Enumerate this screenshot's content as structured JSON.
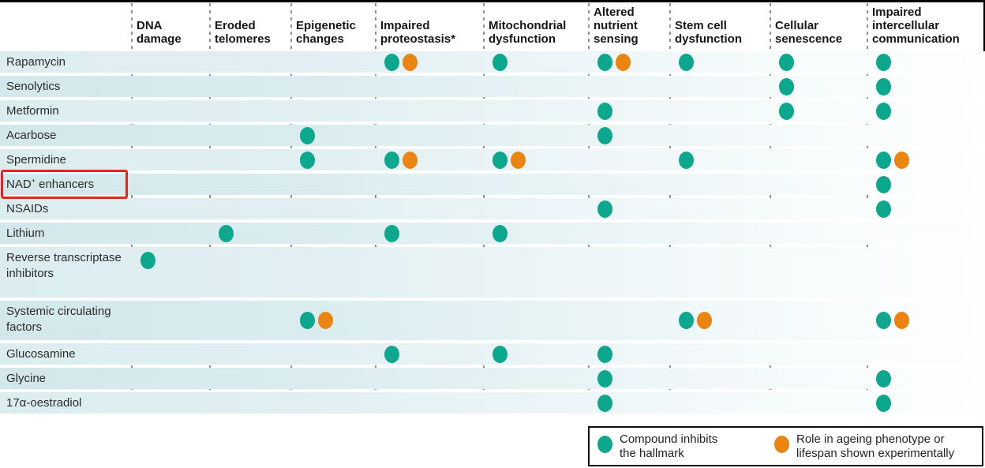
{
  "colors": {
    "teal": "#0ca78c",
    "orange": "#ea8512",
    "highlight_red": "#e52619",
    "row_band": "#dcedf0",
    "separator_gray": "#8b9398"
  },
  "columns": [
    {
      "label": "DNA damage"
    },
    {
      "label": "Eroded telomeres"
    },
    {
      "label": "Epigenetic changes"
    },
    {
      "label": "Impaired proteostasis*"
    },
    {
      "label": "Mitochondrial dysfunction"
    },
    {
      "label": "Altered nutrient sensing"
    },
    {
      "label": "Stem cell dysfunction"
    },
    {
      "label": "Cellular senescence"
    },
    {
      "label": "Impaired intercellular communication"
    }
  ],
  "rows": [
    {
      "label": "Rapamycin",
      "cells": [
        "",
        "",
        "",
        "TO",
        "T",
        "TO",
        "T",
        "T",
        "T"
      ]
    },
    {
      "label": "Senolytics",
      "cells": [
        "",
        "",
        "",
        "",
        "",
        "",
        "",
        "T",
        "T"
      ]
    },
    {
      "label": "Metformin",
      "cells": [
        "",
        "",
        "",
        "",
        "",
        "T",
        "",
        "T",
        "T"
      ]
    },
    {
      "label": "Acarbose",
      "cells": [
        "",
        "",
        "T",
        "",
        "",
        "T",
        "",
        "",
        ""
      ]
    },
    {
      "label": "Spermidine",
      "cells": [
        "",
        "",
        "T",
        "TO",
        "TO",
        "",
        "T",
        "",
        "TO"
      ]
    },
    {
      "label": "NAD+ enhancers",
      "sup_split": [
        "NAD",
        "+",
        " enhancers"
      ],
      "highlighted": true,
      "cells": [
        "",
        "",
        "",
        "",
        "",
        "",
        "",
        "",
        "T"
      ]
    },
    {
      "label": "NSAIDs",
      "cells": [
        "",
        "",
        "",
        "",
        "",
        "T",
        "",
        "",
        "T"
      ]
    },
    {
      "label": "Lithium",
      "cells": [
        "",
        "T",
        "",
        "T",
        "T",
        "",
        "",
        "",
        ""
      ]
    },
    {
      "label": "Reverse transcriptase inhibitors",
      "cells": [
        "T",
        "",
        "",
        "",
        "",
        "",
        "",
        "",
        ""
      ]
    },
    {
      "label": "Systemic circulating factors",
      "cells": [
        "",
        "",
        "TO",
        "",
        "",
        "",
        "TO",
        "",
        "TO"
      ]
    },
    {
      "label": "Glucosamine",
      "cells": [
        "",
        "",
        "",
        "T",
        "T",
        "T",
        "",
        "",
        ""
      ]
    },
    {
      "label": "Glycine",
      "cells": [
        "",
        "",
        "",
        "",
        "",
        "T",
        "",
        "",
        "T"
      ]
    },
    {
      "label": "17α-oestradiol",
      "cells": [
        "",
        "",
        "",
        "",
        "",
        "T",
        "",
        "",
        "T"
      ]
    }
  ],
  "legend": {
    "items": [
      {
        "marker": "teal",
        "lines": [
          "Compound inhibits",
          "the hallmark"
        ]
      },
      {
        "marker": "orange",
        "lines": [
          "Role in ageing phenotype or",
          "lifespan shown experimentally"
        ]
      }
    ]
  },
  "chart_data": {
    "type": "heatmap",
    "title": "Compounds versus hallmarks of ageing they inhibit",
    "columns": [
      "DNA damage",
      "Eroded telomeres",
      "Epigenetic changes",
      "Impaired proteostasis*",
      "Mitochondrial dysfunction",
      "Altered nutrient sensing",
      "Stem cell dysfunction",
      "Cellular senescence",
      "Impaired intercellular communication"
    ],
    "rows": [
      "Rapamycin",
      "Senolytics",
      "Metformin",
      "Acarbose",
      "Spermidine",
      "NAD+ enhancers",
      "NSAIDs",
      "Lithium",
      "Reverse transcriptase inhibitors",
      "Systemic circulating factors",
      "Glucosamine",
      "Glycine",
      "17α-oestradiol"
    ],
    "cell_codes": {
      "T": "teal dot: compound inhibits the hallmark",
      "TO": "teal + orange dots: also role in ageing phenotype or lifespan shown experimentally",
      "": "no marker"
    },
    "matrix": [
      [
        "",
        "",
        "",
        "TO",
        "T",
        "TO",
        "T",
        "T",
        "T"
      ],
      [
        "",
        "",
        "",
        "",
        "",
        "",
        "",
        "T",
        "T"
      ],
      [
        "",
        "",
        "",
        "",
        "",
        "T",
        "",
        "T",
        "T"
      ],
      [
        "",
        "",
        "T",
        "",
        "",
        "T",
        "",
        "",
        ""
      ],
      [
        "",
        "",
        "T",
        "TO",
        "TO",
        "",
        "T",
        "",
        "TO"
      ],
      [
        "",
        "",
        "",
        "",
        "",
        "",
        "",
        "",
        "T"
      ],
      [
        "",
        "",
        "",
        "",
        "",
        "T",
        "",
        "",
        "T"
      ],
      [
        "",
        "T",
        "",
        "T",
        "T",
        "",
        "",
        "",
        ""
      ],
      [
        "T",
        "",
        "",
        "",
        "",
        "",
        "",
        "",
        ""
      ],
      [
        "",
        "",
        "TO",
        "",
        "",
        "",
        "TO",
        "",
        "TO"
      ],
      [
        "",
        "",
        "",
        "T",
        "T",
        "T",
        "",
        "",
        ""
      ],
      [
        "",
        "",
        "",
        "",
        "",
        "T",
        "",
        "",
        "T"
      ],
      [
        "",
        "",
        "",
        "",
        "",
        "T",
        "",
        "",
        "T"
      ]
    ],
    "legend_position": "bottom-right",
    "annotations": [
      "red box drawn around row label 'NAD+ enhancers'"
    ]
  }
}
